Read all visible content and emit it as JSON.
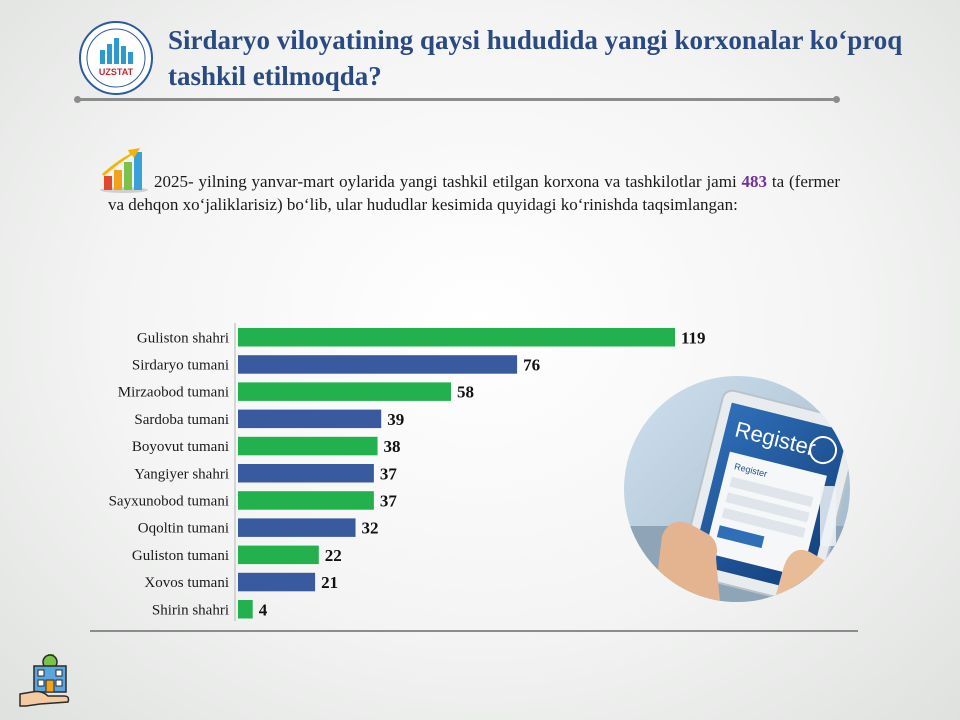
{
  "header": {
    "title": "Sirdaryo viloyatining qaysi hududida yangi korxonalar ko‘proq tashkil etilmoqda?",
    "logo_text": "UZSTAT"
  },
  "intro": {
    "text_before": "2025- yilning yanvar-mart oylarida yangi tashkil etilgan korxona va tashkilotlar jami ",
    "highlight": "483",
    "text_after": " ta (fermer va dehqon xo‘jaliklarisiz) bo‘lib, ular hududlar kesimida quyidagi ko‘rinishda taqsimlangan:"
  },
  "photo": {
    "screen_title": "Register",
    "form_title": "Register"
  },
  "colors": {
    "green": "#22b14c",
    "blue": "#3a5a9f",
    "title": "#2a4a82",
    "highlight": "#7030a0"
  },
  "chart_data": {
    "type": "bar",
    "orientation": "horizontal",
    "categories": [
      "Guliston shahri",
      "Sirdaryo tumani",
      "Mirzaobod tumani",
      "Sardoba tumani",
      "Boyovut tumani",
      "Yangiyer shahri",
      "Sayxunobod tumani",
      "Oqoltin tumani",
      "Guliston tumani",
      "Xovos tumani",
      "Shirin shahri"
    ],
    "values": [
      119,
      76,
      58,
      39,
      38,
      37,
      37,
      32,
      22,
      21,
      4
    ],
    "bar_colors": [
      "#22b14c",
      "#3a5a9f",
      "#22b14c",
      "#3a5a9f",
      "#22b14c",
      "#3a5a9f",
      "#22b14c",
      "#3a5a9f",
      "#22b14c",
      "#3a5a9f",
      "#22b14c"
    ],
    "title": "",
    "xlabel": "",
    "ylabel": "",
    "xlim": [
      0,
      119
    ],
    "data_labels": true,
    "grid": false,
    "legend": "none"
  }
}
